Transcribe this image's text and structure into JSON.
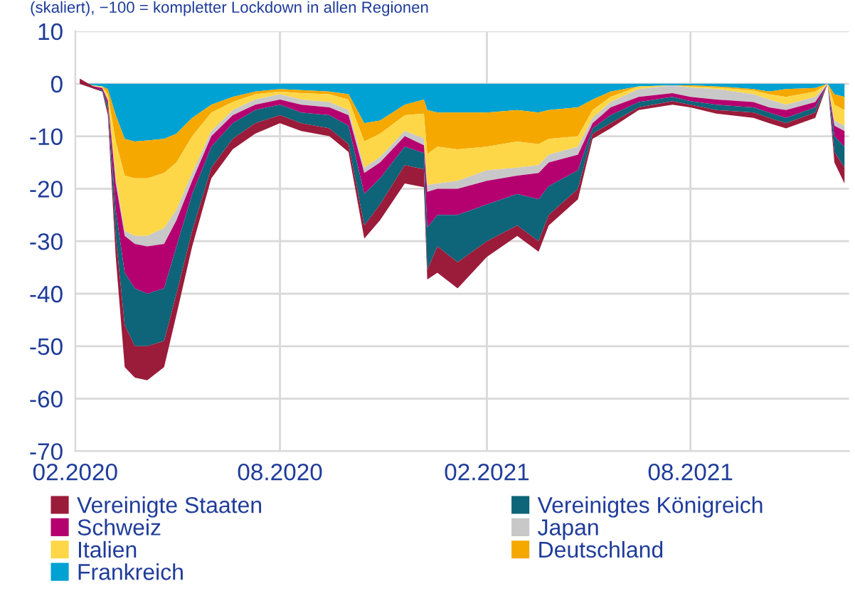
{
  "chart_data": {
    "type": "area",
    "stacked": true,
    "subtitle": "(skaliert), −100 = kompletter Lockdown in allen Regionen",
    "x": [
      "2020-02-05",
      "2020-02-25",
      "2020-03-01",
      "2020-03-08",
      "2020-03-16",
      "2020-03-25",
      "2020-04-05",
      "2020-04-20",
      "2020-05-01",
      "2020-05-15",
      "2020-06-01",
      "2020-06-20",
      "2020-07-10",
      "2020-08-01",
      "2020-08-20",
      "2020-09-14",
      "2020-10-01",
      "2020-10-15",
      "2020-10-29",
      "2020-11-20",
      "2020-12-07",
      "2020-12-10",
      "2020-12-19",
      "2021-01-06",
      "2021-02-01",
      "2021-02-28",
      "2021-03-19",
      "2021-03-28",
      "2021-04-23",
      "2021-05-06",
      "2021-05-22",
      "2021-06-16",
      "2021-07-16",
      "2021-08-01",
      "2021-08-24",
      "2021-09-26",
      "2021-10-10",
      "2021-10-25",
      "2021-11-20",
      "2021-12-01",
      "2021-12-07",
      "2021-12-16"
    ],
    "series": [
      {
        "name": "Frankreich",
        "color": "#00a2d3",
        "values": [
          0,
          -0.5,
          -1,
          -6,
          -10.5,
          -11,
          -10.8,
          -10.5,
          -9.5,
          -6.5,
          -4,
          -2.5,
          -1.5,
          -1,
          -1.2,
          -1.5,
          -2,
          -7.5,
          -7,
          -4,
          -3,
          -5,
          -5.5,
          -5.5,
          -5.5,
          -5,
          -5.5,
          -5,
          -4.5,
          -3,
          -1.5,
          -0.5,
          -0.3,
          -0.3,
          -0.5,
          -1,
          -1.5,
          -1,
          -0.8,
          0,
          -2,
          -2.5
        ]
      },
      {
        "name": "Deutschland",
        "color": "#f5a800",
        "values": [
          0,
          0,
          -1,
          -5,
          -7,
          -7,
          -7.2,
          -6.5,
          -5.5,
          -3.5,
          -1.5,
          -1,
          -0.5,
          -0.5,
          -0.6,
          -0.5,
          -1,
          -3.5,
          -2.5,
          -2,
          -2.7,
          -8.4,
          -6.5,
          -7,
          -6.5,
          -6,
          -6,
          -5.5,
          -5.5,
          -2,
          -1,
          0,
          0,
          -0.2,
          -0.2,
          -0.3,
          -0.5,
          -1.5,
          -0.7,
          0,
          -2,
          -2.5
        ]
      },
      {
        "name": "Italien",
        "color": "#fdd748",
        "values": [
          0,
          -0.2,
          -1,
          -7,
          -10.5,
          -11,
          -11,
          -10.5,
          -9,
          -7,
          -3.5,
          -1.5,
          -1,
          -0.5,
          -1.2,
          -1.5,
          -2,
          -5,
          -4.5,
          -3,
          -4.7,
          -5.9,
          -7,
          -6,
          -4.5,
          -5,
          -4,
          -3,
          -2,
          -1.5,
          -1,
          -0.5,
          0,
          -0.2,
          -0.3,
          -0.7,
          -1,
          -1.5,
          -1,
          0,
          -3,
          -3
        ]
      },
      {
        "name": "Japan",
        "color": "#c8c8c8",
        "values": [
          0,
          -0.1,
          -0.2,
          -1,
          -1,
          -1.5,
          -2,
          -3,
          -2,
          -1.5,
          -1,
          -1,
          -1,
          -1,
          -1,
          -1,
          -1,
          -1,
          -1,
          -1,
          -1.3,
          -1.3,
          -1,
          -1.5,
          -2,
          -1.5,
          -1.5,
          -1.5,
          -1.5,
          -1,
          -1,
          -1.5,
          -1.5,
          -1.8,
          -2,
          -1.5,
          -1.5,
          -1,
          -1,
          0,
          -1,
          -1
        ]
      },
      {
        "name": "Schweiz",
        "color": "#b5006f",
        "values": [
          0,
          -0.4,
          -0.8,
          -5,
          -7,
          -8.5,
          -9,
          -8.5,
          -5,
          -2.5,
          -2,
          -1.5,
          -1,
          -1,
          -1.5,
          -1.5,
          -2,
          -4,
          -3,
          -2,
          -1.5,
          -6.8,
          -5,
          -5,
          -4.5,
          -3.5,
          -5,
          -4.5,
          -3,
          -1,
          -1.5,
          -1,
          -0.7,
          -0.8,
          -1,
          -1,
          -1,
          -1.5,
          -1,
          0,
          -2,
          -3
        ]
      },
      {
        "name": "Vereinigtes Königreich",
        "color": "#0e6479",
        "values": [
          0,
          -0.3,
          -1,
          -5,
          -10,
          -11,
          -10,
          -10,
          -9,
          -7,
          -4,
          -3,
          -2.5,
          -2,
          -2,
          -2.5,
          -3.5,
          -6,
          -5,
          -3.5,
          -3.1,
          -8.1,
          -6,
          -9,
          -7,
          -6,
          -8,
          -5.5,
          -3.5,
          -1,
          -1.5,
          -1,
          -0.8,
          -0.7,
          -1,
          -1,
          -1,
          -1,
          -1,
          0,
          -3,
          -4
        ]
      },
      {
        "name": "Vereinigte Staaten",
        "color": "#9b1b3a",
        "values": [
          1,
          0,
          -1,
          -4,
          -8,
          -6,
          -6.5,
          -5,
          -4,
          -3,
          -2,
          -2,
          -2,
          -1.5,
          -1.5,
          -1.5,
          -1.5,
          -2.5,
          -3,
          -3.5,
          -3.4,
          -1.8,
          -5,
          -5,
          -3,
          -2,
          -2,
          -2,
          -2,
          -1,
          -1,
          -0.5,
          -0.7,
          -0.5,
          -0.7,
          -1,
          -1,
          -1,
          -1,
          0,
          -2,
          -3
        ]
      }
    ],
    "xlim": [
      "2020-02-01",
      "2021-12-20"
    ],
    "xticks": [
      {
        "value": "2020-02-01",
        "label": "02.2020"
      },
      {
        "value": "2020-08-01",
        "label": "08.2020"
      },
      {
        "value": "2021-02-01",
        "label": "02.2021"
      },
      {
        "value": "2021-08-01",
        "label": "08.2021"
      }
    ],
    "ylim": [
      -70,
      10
    ],
    "yticks": [
      -70,
      -60,
      -50,
      -40,
      -30,
      -20,
      -10,
      0,
      10
    ],
    "grid": true,
    "legend": "bottom"
  }
}
